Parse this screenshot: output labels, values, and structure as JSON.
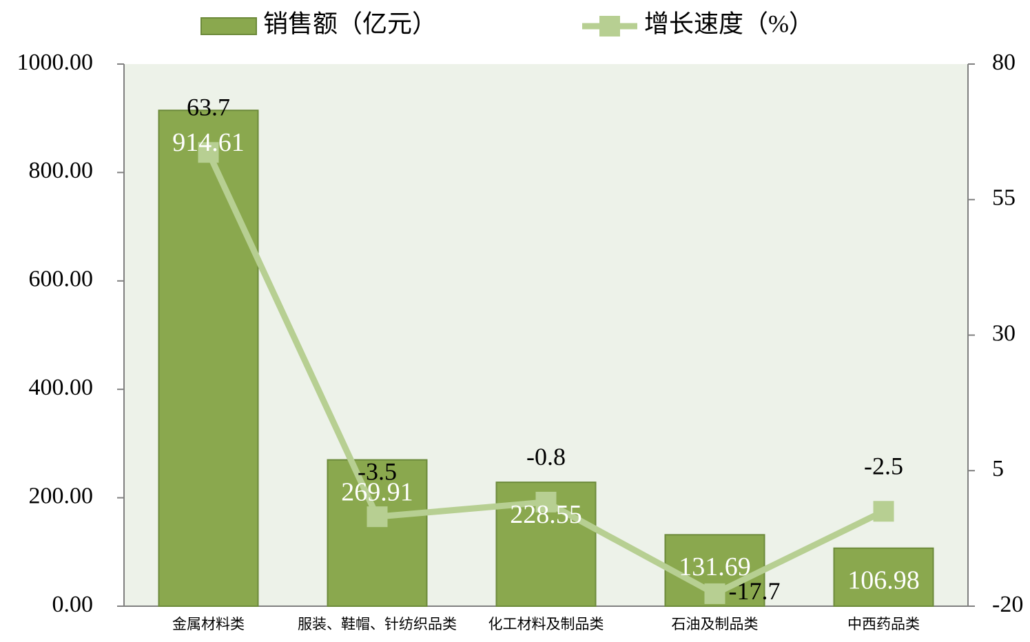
{
  "chart_data": {
    "type": "bar",
    "categories": [
      "金属材料类",
      "服装、鞋帽、针纺织品类",
      "化工材料及制品类",
      "石油及制品类",
      "中西药品类"
    ],
    "series": [
      {
        "name": "销售额（亿元）",
        "type": "bar",
        "color": "#8aa84e",
        "values": [
          914.61,
          269.91,
          228.55,
          131.69,
          106.98
        ]
      },
      {
        "name": "增长速度（%）",
        "type": "line",
        "axis": "y2",
        "color": "#b7cf92",
        "values": [
          63.7,
          -3.5,
          -0.8,
          -17.7,
          -2.5
        ]
      }
    ],
    "ylim": [
      0,
      1000
    ],
    "yticks": [
      {
        "value": 0,
        "label": "0.00"
      },
      {
        "value": 200,
        "label": "200.00"
      },
      {
        "value": 400,
        "label": "400.00"
      },
      {
        "value": 600,
        "label": "600.00"
      },
      {
        "value": 800,
        "label": "800.00"
      },
      {
        "value": 1000,
        "label": "1000.00"
      }
    ],
    "y2lim": [
      -20,
      80
    ],
    "y2ticks": [
      -20,
      5,
      30,
      55,
      80
    ],
    "legend": "top"
  }
}
